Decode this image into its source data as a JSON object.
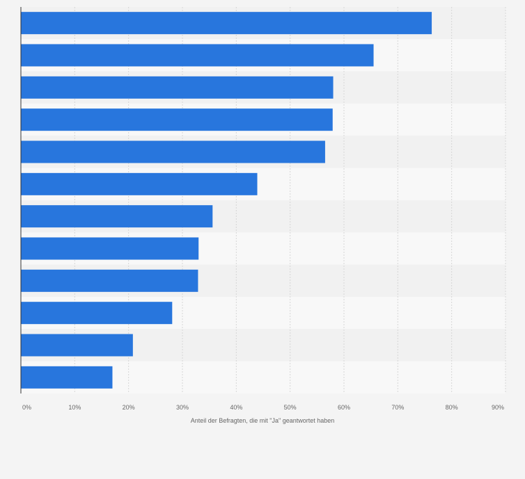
{
  "chart_data": {
    "type": "bar",
    "orientation": "horizontal",
    "categories": [
      "",
      "",
      "",
      "",
      "",
      "",
      "",
      "",
      "",
      "",
      "",
      ""
    ],
    "values": [
      76.3,
      65.5,
      58.0,
      57.9,
      56.5,
      43.9,
      35.6,
      33.0,
      32.9,
      28.1,
      20.8,
      17.0
    ],
    "title": "",
    "xlabel": "Anteil der Befragten, die mit \"Ja\" geantwortet haben",
    "ylabel": "",
    "xlim": [
      0,
      90
    ],
    "x_ticks": [
      0,
      10,
      20,
      30,
      40,
      50,
      60,
      70,
      80,
      90
    ],
    "x_tick_labels": [
      "0%",
      "10%",
      "20%",
      "30%",
      "40%",
      "50%",
      "60%",
      "70%",
      "80%",
      "90%"
    ],
    "grid": true,
    "colors": {
      "bar": "#2876dd",
      "band_light": "#f8f8f8",
      "band_dark": "#f1f1f1",
      "gridline": "#d6d6d6",
      "axis": "#333333"
    }
  }
}
